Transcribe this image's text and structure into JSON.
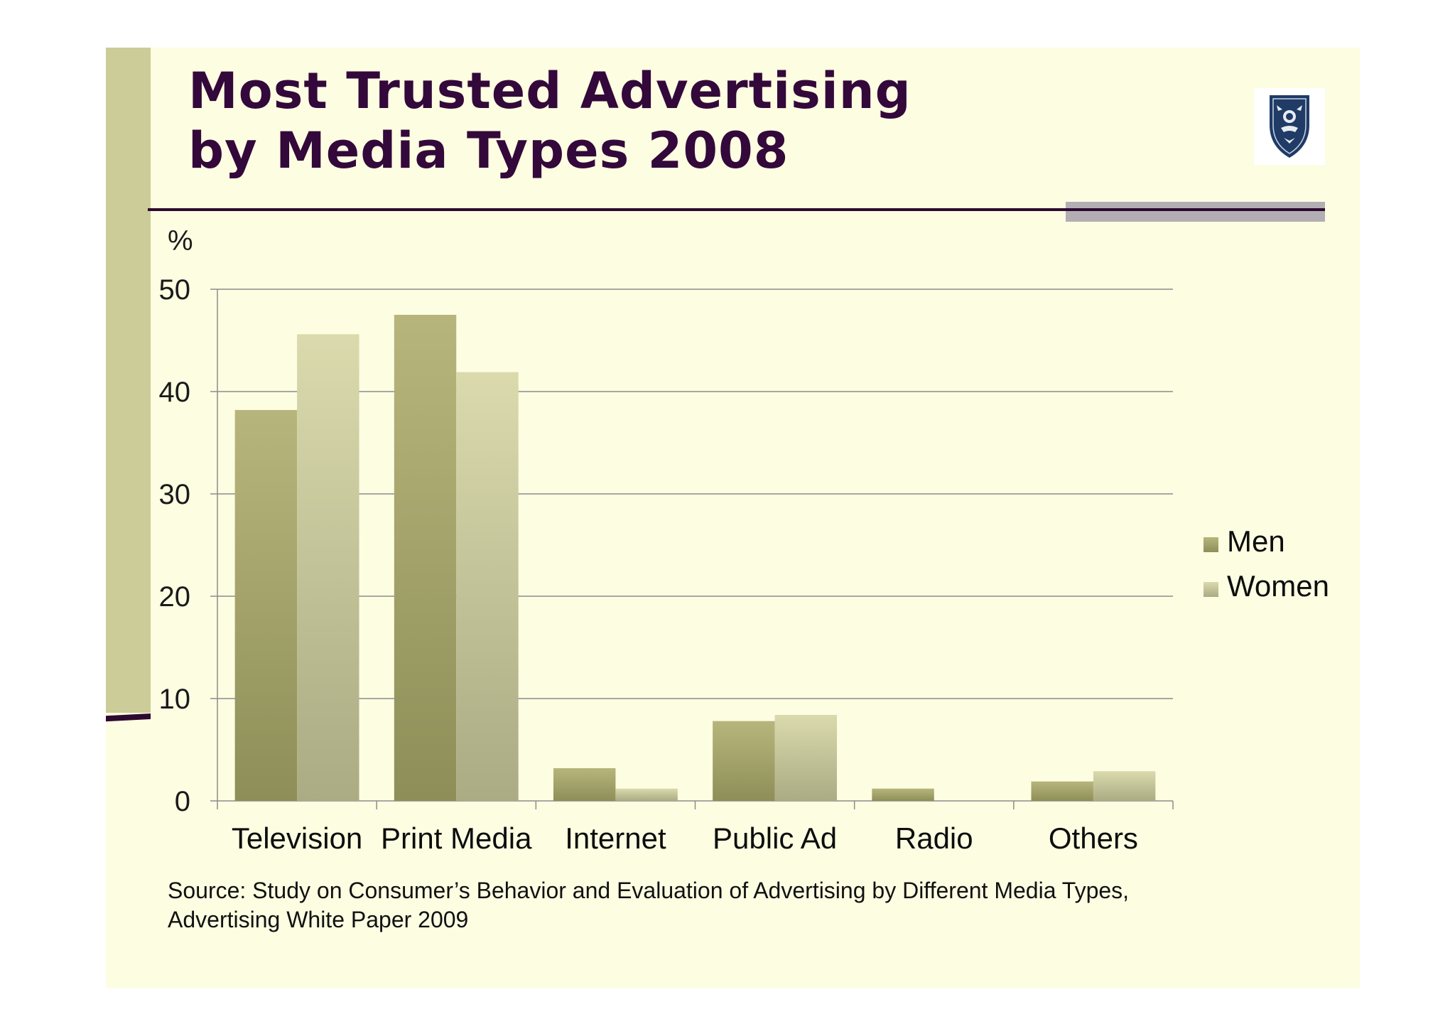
{
  "slide": {
    "title_line1": "Most Trusted Advertising",
    "title_line2": "by Media Types 2008",
    "source": "Source: Study on Consumer’s Behavior and Evaluation of Advertising by Different Media Types, Advertising White Paper 2009",
    "logo_icon": "university-crest-icon"
  },
  "colors": {
    "title": "#33083a",
    "slide_background": "#fdfde2",
    "accent_bar": "#cbcc98",
    "men": "#a3a36a",
    "women": "#cfcfa3"
  },
  "chart_data": {
    "type": "bar",
    "title": "Most Trusted Advertising by Media Types 2008",
    "xlabel": "",
    "ylabel": "%",
    "ylim": [
      0,
      50
    ],
    "yticks": [
      0,
      10,
      20,
      30,
      40,
      50
    ],
    "grid": true,
    "legend_position": "right",
    "categories": [
      "Television",
      "Print Media",
      "Internet",
      "Public Ad",
      "Radio",
      "Others"
    ],
    "series": [
      {
        "name": "Men",
        "values": [
          38.2,
          47.5,
          3.2,
          7.8,
          1.2,
          1.9
        ]
      },
      {
        "name": "Women",
        "values": [
          45.6,
          41.9,
          1.2,
          8.4,
          0,
          2.9
        ]
      }
    ]
  }
}
